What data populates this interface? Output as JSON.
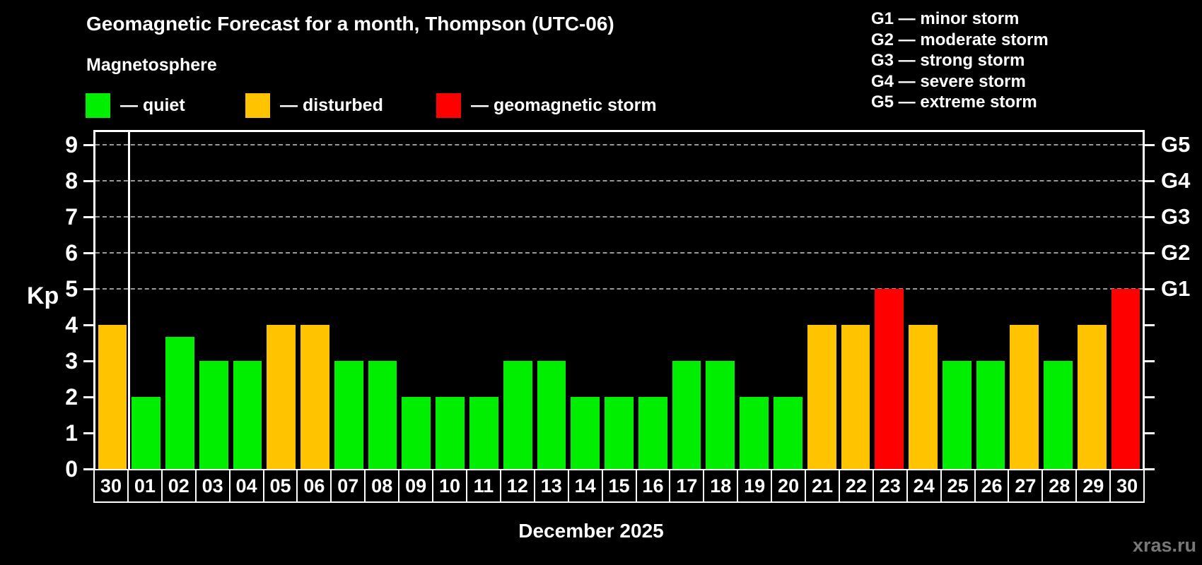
{
  "title": "Geomagnetic Forecast for a month, Thompson (UTC-06)",
  "subtitle": "Magnetosphere",
  "legend": {
    "items": [
      {
        "key": "quiet",
        "label": "— quiet",
        "color": "#00ee00"
      },
      {
        "key": "disturbed",
        "label": "— disturbed",
        "color": "#ffc300"
      },
      {
        "key": "storm",
        "label": "— geomagnetic storm",
        "color": "#ff0000"
      }
    ]
  },
  "g_legend": {
    "items": [
      {
        "label": "G1 — minor storm"
      },
      {
        "label": "G2 — moderate storm"
      },
      {
        "label": "G3 — strong storm"
      },
      {
        "label": "G4 — severe storm"
      },
      {
        "label": "G5 — extreme storm"
      }
    ]
  },
  "watermark": "xras.ru",
  "chart_data": {
    "type": "bar",
    "title": "Geomagnetic Forecast for a month, Thompson (UTC-06)",
    "xlabel": "December 2025",
    "ylabel": "Kp",
    "ylim": [
      0,
      9.5
    ],
    "yticks": [
      0,
      1,
      2,
      3,
      4,
      5,
      6,
      7,
      8,
      9
    ],
    "gridlines_at": [
      5,
      6,
      7,
      8,
      9
    ],
    "grid_style": "dashed horizontal lines at Kp 5–9 only",
    "legend_position": "top-left",
    "right_axis_labels": [
      {
        "kp": 5,
        "text": "G1"
      },
      {
        "kp": 6,
        "text": "G2"
      },
      {
        "kp": 7,
        "text": "G3"
      },
      {
        "kp": 8,
        "text": "G4"
      },
      {
        "kp": 9,
        "text": "G5"
      }
    ],
    "categories": [
      "30",
      "01",
      "02",
      "03",
      "04",
      "05",
      "06",
      "07",
      "08",
      "09",
      "10",
      "11",
      "12",
      "13",
      "14",
      "15",
      "16",
      "17",
      "18",
      "19",
      "20",
      "21",
      "22",
      "23",
      "24",
      "25",
      "26",
      "27",
      "28",
      "29",
      "30"
    ],
    "values": [
      4,
      2,
      3.67,
      3,
      3,
      4,
      4,
      3,
      3,
      2,
      2,
      2,
      3,
      3,
      2,
      2,
      2,
      3,
      3,
      2,
      2,
      4,
      4,
      5,
      4,
      3,
      3,
      4,
      3,
      4,
      5
    ],
    "status_colors": {
      "quiet": "#00ee00",
      "disturbed": "#ffc300",
      "storm": "#ff0000"
    },
    "thresholds": {
      "disturbed_min": 4,
      "storm_min": 5
    },
    "separator_after_index": 0
  }
}
